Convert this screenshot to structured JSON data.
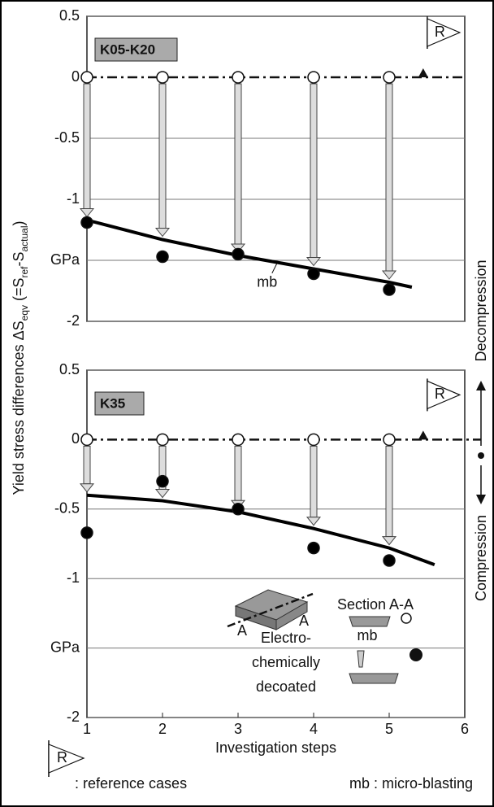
{
  "figure": {
    "y_label_parts": [
      "Yield stress  differences ΔS",
      "eqv",
      " (=S",
      "ref",
      "-S",
      "actual",
      ")"
    ],
    "right_labels": [
      "Decompression",
      "Compression"
    ],
    "inset": {
      "section": "Section A-A",
      "mb": "mb",
      "a_left": "A",
      "a_right": "A",
      "lines": [
        "Electro-",
        "chemically",
        "decoated"
      ]
    },
    "footer": {
      "flag_letter": "R",
      "reference_text": ": reference cases",
      "mb_text": "mb : micro-blasting"
    }
  },
  "chart_data": [
    {
      "type": "scatter",
      "panel_label": "K05-K20",
      "flag_letter": "R",
      "x": [
        1,
        2,
        3,
        4,
        5
      ],
      "series": [
        {
          "color": "#ffffff",
          "values": [
            0,
            0,
            0,
            0,
            0
          ]
        },
        {
          "color": "#000000",
          "values": [
            -1.19,
            -1.47,
            -1.45,
            -1.61,
            -1.74
          ]
        }
      ],
      "fit": {
        "label": "mb",
        "color": "#000000",
        "x": [
          1,
          2,
          3,
          4,
          5,
          5.3
        ],
        "values": [
          -1.17,
          -1.33,
          -1.46,
          -1.57,
          -1.68,
          -1.72
        ]
      },
      "xlim": [
        1,
        6
      ],
      "ylim": [
        -2,
        0.5
      ],
      "yticks": [
        0.5,
        0,
        -0.5,
        -1,
        {
          "value": -1.5,
          "label": "GPa"
        },
        -2
      ]
    },
    {
      "type": "scatter",
      "panel_label": "K35",
      "flag_letter": "R",
      "x": [
        1,
        2,
        3,
        4,
        5
      ],
      "series": [
        {
          "color": "#ffffff",
          "values": [
            0,
            0,
            0,
            0,
            0
          ]
        },
        {
          "color": "#000000",
          "values": [
            -0.67,
            -0.3,
            -0.5,
            -0.78,
            -0.87
          ]
        }
      ],
      "fit": {
        "color": "#000000",
        "x": [
          1,
          2,
          3,
          4,
          5,
          5.6
        ],
        "values": [
          -0.4,
          -0.44,
          -0.52,
          -0.64,
          -0.78,
          -0.9
        ]
      },
      "xlim": [
        1,
        6
      ],
      "ylim": [
        -2,
        0.5
      ],
      "yticks": [
        0.5,
        0,
        -0.5,
        -1,
        {
          "value": -1.5,
          "label": "GPa"
        },
        -2
      ],
      "xticks": [
        1,
        2,
        3,
        4,
        5,
        6
      ],
      "x_label": "Investigation steps"
    }
  ]
}
